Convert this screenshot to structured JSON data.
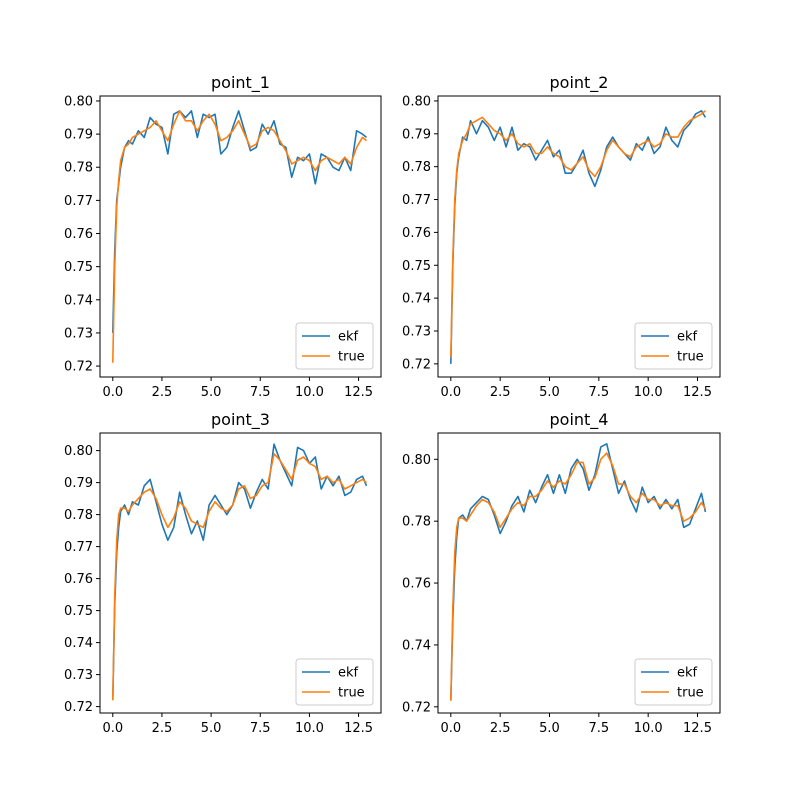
{
  "figure": {
    "background": "#ffffff"
  },
  "chart_data": [
    {
      "type": "line",
      "title": "point_1",
      "xlim": [
        -0.65,
        13.64
      ],
      "ylim": [
        0.7167,
        0.8015
      ],
      "xticks": [
        0.0,
        2.5,
        5.0,
        7.5,
        10.0,
        12.5
      ],
      "xtick_labels": [
        "0.0",
        "2.5",
        "5.0",
        "7.5",
        "10.0",
        "12.5"
      ],
      "yticks": [
        0.72,
        0.73,
        0.74,
        0.75,
        0.76,
        0.77,
        0.78,
        0.79,
        0.8
      ],
      "ytick_labels": [
        "0.72",
        "0.73",
        "0.74",
        "0.75",
        "0.76",
        "0.77",
        "0.78",
        "0.79",
        "0.80"
      ],
      "legend": {
        "position": "lower-right",
        "entries": [
          "ekf",
          "true"
        ]
      },
      "series": [
        {
          "name": "ekf",
          "color": "#1f77b4",
          "x": [
            0.0,
            0.1,
            0.2,
            0.3,
            0.4,
            0.6,
            0.8,
            1.0,
            1.3,
            1.6,
            1.9,
            2.2,
            2.5,
            2.8,
            3.1,
            3.4,
            3.7,
            4.0,
            4.3,
            4.6,
            4.9,
            5.2,
            5.5,
            5.8,
            6.1,
            6.4,
            6.7,
            7.0,
            7.3,
            7.6,
            7.9,
            8.2,
            8.5,
            8.8,
            9.1,
            9.4,
            9.7,
            10.0,
            10.3,
            10.6,
            10.9,
            11.2,
            11.5,
            11.8,
            12.1,
            12.4,
            12.7,
            12.9
          ],
          "y": [
            0.73,
            0.755,
            0.77,
            0.775,
            0.78,
            0.786,
            0.788,
            0.787,
            0.791,
            0.789,
            0.795,
            0.793,
            0.792,
            0.784,
            0.796,
            0.797,
            0.795,
            0.797,
            0.789,
            0.796,
            0.795,
            0.796,
            0.784,
            0.786,
            0.792,
            0.797,
            0.791,
            0.785,
            0.786,
            0.793,
            0.79,
            0.794,
            0.787,
            0.786,
            0.777,
            0.783,
            0.782,
            0.784,
            0.775,
            0.784,
            0.783,
            0.78,
            0.779,
            0.783,
            0.779,
            0.791,
            0.79,
            0.789
          ]
        },
        {
          "name": "true",
          "color": "#ff7f0e",
          "x": [
            0.0,
            0.1,
            0.2,
            0.3,
            0.4,
            0.6,
            0.8,
            1.0,
            1.3,
            1.6,
            1.9,
            2.2,
            2.5,
            2.8,
            3.1,
            3.4,
            3.7,
            4.0,
            4.3,
            4.6,
            4.9,
            5.2,
            5.5,
            5.8,
            6.1,
            6.4,
            6.7,
            7.0,
            7.3,
            7.6,
            7.9,
            8.2,
            8.5,
            8.8,
            9.1,
            9.4,
            9.7,
            10.0,
            10.3,
            10.6,
            10.9,
            11.2,
            11.5,
            11.8,
            12.1,
            12.4,
            12.7,
            12.9
          ],
          "y": [
            0.721,
            0.75,
            0.768,
            0.776,
            0.782,
            0.786,
            0.787,
            0.789,
            0.79,
            0.791,
            0.792,
            0.794,
            0.791,
            0.788,
            0.793,
            0.797,
            0.794,
            0.794,
            0.791,
            0.794,
            0.796,
            0.793,
            0.788,
            0.789,
            0.791,
            0.794,
            0.79,
            0.786,
            0.787,
            0.791,
            0.792,
            0.791,
            0.788,
            0.785,
            0.781,
            0.782,
            0.783,
            0.782,
            0.779,
            0.782,
            0.783,
            0.782,
            0.781,
            0.783,
            0.781,
            0.786,
            0.789,
            0.788
          ]
        }
      ]
    },
    {
      "type": "line",
      "title": "point_2",
      "xlim": [
        -0.65,
        13.64
      ],
      "ylim": [
        0.716,
        0.8015
      ],
      "xticks": [
        0.0,
        2.5,
        5.0,
        7.5,
        10.0,
        12.5
      ],
      "xtick_labels": [
        "0.0",
        "2.5",
        "5.0",
        "7.5",
        "10.0",
        "12.5"
      ],
      "yticks": [
        0.72,
        0.73,
        0.74,
        0.75,
        0.76,
        0.77,
        0.78,
        0.79,
        0.8
      ],
      "ytick_labels": [
        "0.72",
        "0.73",
        "0.74",
        "0.75",
        "0.76",
        "0.77",
        "0.78",
        "0.79",
        "0.80"
      ],
      "legend": {
        "position": "lower-right",
        "entries": [
          "ekf",
          "true"
        ]
      },
      "series": [
        {
          "name": "ekf",
          "color": "#1f77b4",
          "x": [
            0.0,
            0.1,
            0.2,
            0.3,
            0.4,
            0.6,
            0.8,
            1.0,
            1.3,
            1.6,
            1.9,
            2.2,
            2.5,
            2.8,
            3.1,
            3.4,
            3.7,
            4.0,
            4.3,
            4.6,
            4.9,
            5.2,
            5.5,
            5.8,
            6.1,
            6.4,
            6.7,
            7.0,
            7.3,
            7.6,
            7.9,
            8.2,
            8.5,
            8.8,
            9.1,
            9.4,
            9.7,
            10.0,
            10.3,
            10.6,
            10.9,
            11.2,
            11.5,
            11.8,
            12.1,
            12.4,
            12.7,
            12.9
          ],
          "y": [
            0.72,
            0.75,
            0.768,
            0.778,
            0.783,
            0.789,
            0.788,
            0.794,
            0.79,
            0.794,
            0.792,
            0.788,
            0.792,
            0.786,
            0.792,
            0.785,
            0.787,
            0.786,
            0.782,
            0.785,
            0.788,
            0.783,
            0.785,
            0.778,
            0.778,
            0.781,
            0.785,
            0.778,
            0.774,
            0.779,
            0.786,
            0.789,
            0.786,
            0.784,
            0.782,
            0.787,
            0.785,
            0.789,
            0.784,
            0.786,
            0.792,
            0.788,
            0.786,
            0.791,
            0.793,
            0.796,
            0.797,
            0.795
          ]
        },
        {
          "name": "true",
          "color": "#ff7f0e",
          "x": [
            0.0,
            0.1,
            0.2,
            0.3,
            0.4,
            0.6,
            0.8,
            1.0,
            1.3,
            1.6,
            1.9,
            2.2,
            2.5,
            2.8,
            3.1,
            3.4,
            3.7,
            4.0,
            4.3,
            4.6,
            4.9,
            5.2,
            5.5,
            5.8,
            6.1,
            6.4,
            6.7,
            7.0,
            7.3,
            7.6,
            7.9,
            8.2,
            8.5,
            8.8,
            9.1,
            9.4,
            9.7,
            10.0,
            10.3,
            10.6,
            10.9,
            11.2,
            11.5,
            11.8,
            12.1,
            12.4,
            12.7,
            12.9
          ],
          "y": [
            0.722,
            0.752,
            0.77,
            0.779,
            0.784,
            0.788,
            0.79,
            0.793,
            0.794,
            0.795,
            0.793,
            0.791,
            0.79,
            0.788,
            0.79,
            0.787,
            0.786,
            0.787,
            0.784,
            0.784,
            0.786,
            0.784,
            0.783,
            0.78,
            0.779,
            0.781,
            0.783,
            0.779,
            0.777,
            0.78,
            0.785,
            0.788,
            0.786,
            0.784,
            0.783,
            0.786,
            0.787,
            0.788,
            0.786,
            0.787,
            0.79,
            0.789,
            0.789,
            0.792,
            0.794,
            0.795,
            0.796,
            0.797
          ]
        }
      ]
    },
    {
      "type": "line",
      "title": "point_3",
      "xlim": [
        -0.65,
        13.64
      ],
      "ylim": [
        0.718,
        0.8055
      ],
      "xticks": [
        0.0,
        2.5,
        5.0,
        7.5,
        10.0,
        12.5
      ],
      "xtick_labels": [
        "0.0",
        "2.5",
        "5.0",
        "7.5",
        "10.0",
        "12.5"
      ],
      "yticks": [
        0.72,
        0.73,
        0.74,
        0.75,
        0.76,
        0.77,
        0.78,
        0.79,
        0.8
      ],
      "ytick_labels": [
        "0.72",
        "0.73",
        "0.74",
        "0.75",
        "0.76",
        "0.77",
        "0.78",
        "0.79",
        "0.80"
      ],
      "legend": {
        "position": "lower-right",
        "entries": [
          "ekf",
          "true"
        ]
      },
      "series": [
        {
          "name": "ekf",
          "color": "#1f77b4",
          "x": [
            0.0,
            0.1,
            0.2,
            0.3,
            0.4,
            0.6,
            0.8,
            1.0,
            1.3,
            1.6,
            1.9,
            2.2,
            2.5,
            2.8,
            3.1,
            3.4,
            3.7,
            4.0,
            4.3,
            4.6,
            4.9,
            5.2,
            5.5,
            5.8,
            6.1,
            6.4,
            6.7,
            7.0,
            7.3,
            7.6,
            7.9,
            8.2,
            8.5,
            8.8,
            9.1,
            9.4,
            9.7,
            10.0,
            10.3,
            10.6,
            10.9,
            11.2,
            11.5,
            11.8,
            12.1,
            12.4,
            12.7,
            12.9
          ],
          "y": [
            0.722,
            0.752,
            0.768,
            0.776,
            0.781,
            0.783,
            0.78,
            0.784,
            0.783,
            0.789,
            0.791,
            0.784,
            0.777,
            0.772,
            0.776,
            0.787,
            0.78,
            0.774,
            0.778,
            0.772,
            0.783,
            0.786,
            0.783,
            0.78,
            0.783,
            0.79,
            0.788,
            0.782,
            0.787,
            0.791,
            0.788,
            0.802,
            0.797,
            0.793,
            0.789,
            0.801,
            0.8,
            0.796,
            0.798,
            0.788,
            0.792,
            0.789,
            0.792,
            0.786,
            0.787,
            0.791,
            0.792,
            0.789
          ]
        },
        {
          "name": "true",
          "color": "#ff7f0e",
          "x": [
            0.0,
            0.1,
            0.2,
            0.3,
            0.4,
            0.6,
            0.8,
            1.0,
            1.3,
            1.6,
            1.9,
            2.2,
            2.5,
            2.8,
            3.1,
            3.4,
            3.7,
            4.0,
            4.3,
            4.6,
            4.9,
            5.2,
            5.5,
            5.8,
            6.1,
            6.4,
            6.7,
            7.0,
            7.3,
            7.6,
            7.9,
            8.2,
            8.5,
            8.8,
            9.1,
            9.4,
            9.7,
            10.0,
            10.3,
            10.6,
            10.9,
            11.2,
            11.5,
            11.8,
            12.1,
            12.4,
            12.7,
            12.9
          ],
          "y": [
            0.722,
            0.755,
            0.772,
            0.78,
            0.782,
            0.782,
            0.781,
            0.783,
            0.785,
            0.787,
            0.788,
            0.785,
            0.78,
            0.776,
            0.779,
            0.784,
            0.782,
            0.778,
            0.777,
            0.776,
            0.781,
            0.784,
            0.782,
            0.781,
            0.783,
            0.788,
            0.789,
            0.785,
            0.786,
            0.789,
            0.79,
            0.799,
            0.797,
            0.794,
            0.791,
            0.797,
            0.798,
            0.796,
            0.795,
            0.791,
            0.792,
            0.79,
            0.791,
            0.788,
            0.789,
            0.79,
            0.791,
            0.79
          ]
        }
      ]
    },
    {
      "type": "line",
      "title": "point_4",
      "xlim": [
        -0.65,
        13.64
      ],
      "ylim": [
        0.718,
        0.8085
      ],
      "xticks": [
        0.0,
        2.5,
        5.0,
        7.5,
        10.0,
        12.5
      ],
      "xtick_labels": [
        "0.0",
        "2.5",
        "5.0",
        "7.5",
        "10.0",
        "12.5"
      ],
      "yticks": [
        0.72,
        0.74,
        0.76,
        0.78,
        0.8
      ],
      "ytick_labels": [
        "0.72",
        "0.74",
        "0.76",
        "0.78",
        "0.80"
      ],
      "legend": {
        "position": "lower-right",
        "entries": [
          "ekf",
          "true"
        ]
      },
      "series": [
        {
          "name": "ekf",
          "color": "#1f77b4",
          "x": [
            0.0,
            0.1,
            0.2,
            0.3,
            0.4,
            0.6,
            0.8,
            1.0,
            1.3,
            1.6,
            1.9,
            2.2,
            2.5,
            2.8,
            3.1,
            3.4,
            3.7,
            4.0,
            4.3,
            4.6,
            4.9,
            5.2,
            5.5,
            5.8,
            6.1,
            6.4,
            6.7,
            7.0,
            7.3,
            7.6,
            7.9,
            8.2,
            8.5,
            8.8,
            9.1,
            9.4,
            9.7,
            10.0,
            10.3,
            10.6,
            10.9,
            11.2,
            11.5,
            11.8,
            12.1,
            12.4,
            12.7,
            12.9
          ],
          "y": [
            0.722,
            0.748,
            0.765,
            0.775,
            0.781,
            0.782,
            0.78,
            0.784,
            0.786,
            0.788,
            0.787,
            0.782,
            0.776,
            0.78,
            0.785,
            0.788,
            0.783,
            0.79,
            0.786,
            0.791,
            0.795,
            0.789,
            0.795,
            0.789,
            0.797,
            0.8,
            0.797,
            0.79,
            0.795,
            0.804,
            0.805,
            0.797,
            0.789,
            0.793,
            0.787,
            0.783,
            0.791,
            0.786,
            0.788,
            0.784,
            0.787,
            0.784,
            0.787,
            0.778,
            0.779,
            0.784,
            0.789,
            0.783
          ]
        },
        {
          "name": "true",
          "color": "#ff7f0e",
          "x": [
            0.0,
            0.1,
            0.2,
            0.3,
            0.4,
            0.6,
            0.8,
            1.0,
            1.3,
            1.6,
            1.9,
            2.2,
            2.5,
            2.8,
            3.1,
            3.4,
            3.7,
            4.0,
            4.3,
            4.6,
            4.9,
            5.2,
            5.5,
            5.8,
            6.1,
            6.4,
            6.7,
            7.0,
            7.3,
            7.6,
            7.9,
            8.2,
            8.5,
            8.8,
            9.1,
            9.4,
            9.7,
            10.0,
            10.3,
            10.6,
            10.9,
            11.2,
            11.5,
            11.8,
            12.1,
            12.4,
            12.7,
            12.9
          ],
          "y": [
            0.722,
            0.752,
            0.77,
            0.778,
            0.781,
            0.781,
            0.78,
            0.782,
            0.785,
            0.787,
            0.786,
            0.783,
            0.778,
            0.781,
            0.784,
            0.786,
            0.785,
            0.788,
            0.788,
            0.79,
            0.793,
            0.791,
            0.793,
            0.792,
            0.795,
            0.799,
            0.799,
            0.792,
            0.794,
            0.8,
            0.802,
            0.798,
            0.792,
            0.792,
            0.788,
            0.786,
            0.789,
            0.787,
            0.787,
            0.785,
            0.786,
            0.785,
            0.785,
            0.78,
            0.781,
            0.783,
            0.786,
            0.784
          ]
        }
      ]
    }
  ]
}
